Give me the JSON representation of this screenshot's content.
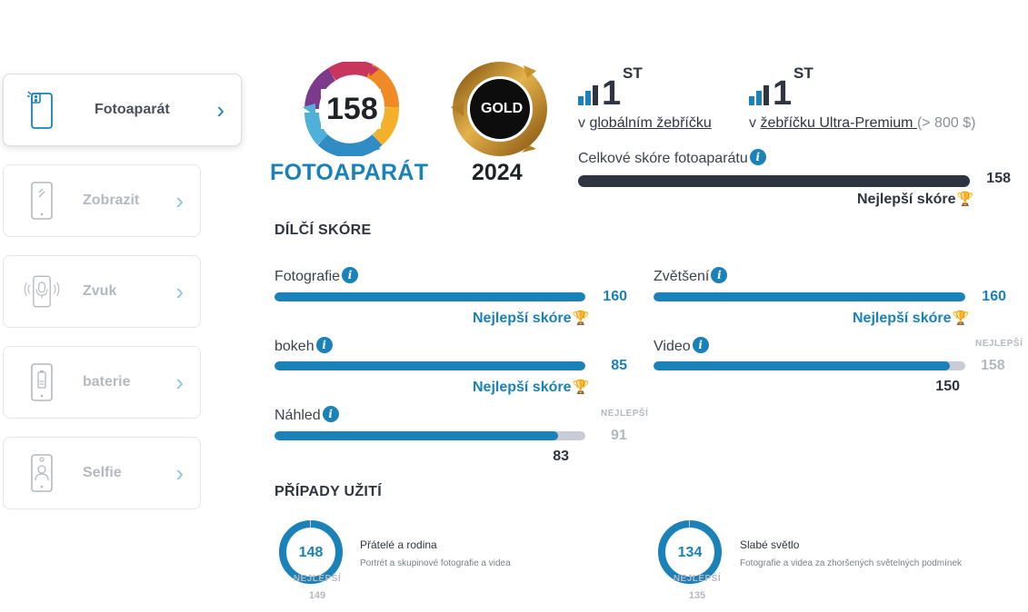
{
  "sidebar": {
    "items": [
      {
        "label": "Fotoaparát",
        "icon": "camera-phone-icon",
        "active": true
      },
      {
        "label": "Zobrazit",
        "icon": "display-phone-icon",
        "active": false
      },
      {
        "label": "Zvuk",
        "icon": "audio-phone-icon",
        "active": false
      },
      {
        "label": "baterie",
        "icon": "battery-phone-icon",
        "active": false
      },
      {
        "label": "Selfie",
        "icon": "selfie-phone-icon",
        "active": false
      }
    ],
    "chevron": "›"
  },
  "badge": {
    "score": "158",
    "title": "FOTOAPARÁT",
    "gold_label": "GOLD",
    "gold_year": "2024"
  },
  "ranks": [
    {
      "number": "1",
      "suffix": "ST",
      "prefix": "v",
      "link": "globálním žebříčku",
      "extra": ""
    },
    {
      "number": "1",
      "suffix": "ST",
      "prefix": "v",
      "link": "žebříčku Ultra-Premium ",
      "extra": "(> 800 $)"
    }
  ],
  "total": {
    "label": "Celkové skóre fotoaparátu",
    "value": "158",
    "max": 158,
    "best_label": "Nejlepší skóre"
  },
  "sub_scores": {
    "heading": "DÍLČÍ SKÓRE",
    "items": [
      {
        "label": "Fotografie",
        "value": "160",
        "best": "160",
        "is_best": true,
        "best_label": "Nejlepší skóre",
        "fraction": 1.0
      },
      {
        "label": "Zvětšení",
        "value": "160",
        "best": "160",
        "is_best": true,
        "best_label": "Nejlepší skóre",
        "fraction": 1.0
      },
      {
        "label": "bokeh",
        "value": "85",
        "best": "85",
        "is_best": true,
        "best_label": "Nejlepší skóre",
        "fraction": 1.0
      },
      {
        "label": "Video",
        "value": "150",
        "best": "158",
        "is_best": false,
        "best_label": "NEJLEPŠÍ",
        "fraction": 0.949
      },
      {
        "label": "Náhled",
        "value": "83",
        "best": "91",
        "is_best": false,
        "best_label": "NEJLEPŠÍ",
        "fraction": 0.912
      }
    ]
  },
  "use_cases": {
    "heading": "PŘÍPADY UŽITÍ",
    "items": [
      {
        "score": "148",
        "best_label": "NEJLEPŠÍ",
        "best": "149",
        "title": "Přátelé a rodina",
        "description": "Portrét a skupinové fotografie a videa",
        "fraction": 0.993
      },
      {
        "score": "134",
        "best_label": "NEJLEPŠÍ",
        "best": "135",
        "title": "Slabé světlo",
        "description": "Fotografie a videa za zhoršených světelných podmínek",
        "fraction": 0.993
      }
    ]
  },
  "colors": {
    "accent": "#1a82b8",
    "dark": "#2e3440",
    "muted_bar": "#c9ccd6",
    "gold": "#c9932b",
    "trophy": "#e8b21b"
  }
}
